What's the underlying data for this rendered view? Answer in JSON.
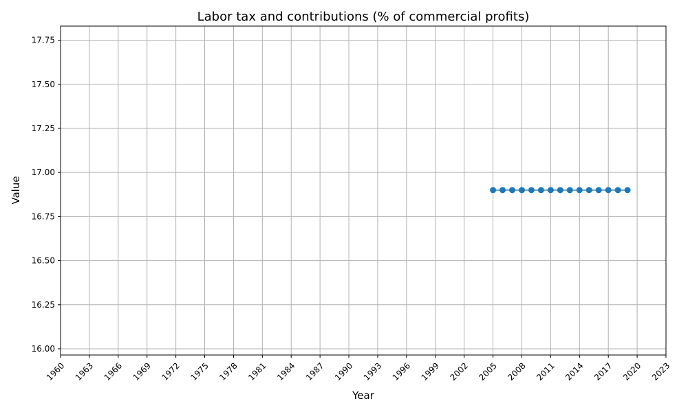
{
  "chart_data": {
    "type": "line",
    "title": "Labor tax and contributions (% of commercial profits)",
    "xlabel": "Year",
    "ylabel": "Value",
    "xlim": [
      1960,
      2023
    ],
    "ylim": [
      15.965,
      17.83
    ],
    "xticks": [
      1960,
      1963,
      1966,
      1969,
      1972,
      1975,
      1978,
      1981,
      1984,
      1987,
      1990,
      1993,
      1996,
      1999,
      2002,
      2005,
      2008,
      2011,
      2014,
      2017,
      2020,
      2023
    ],
    "yticks": [
      16.0,
      16.25,
      16.5,
      16.75,
      17.0,
      17.25,
      17.5,
      17.75
    ],
    "grid": true,
    "series": [
      {
        "color": "#1f77b4",
        "x": [
          2005,
          2006,
          2007,
          2008,
          2009,
          2010,
          2011,
          2012,
          2013,
          2014,
          2015,
          2016,
          2017,
          2018,
          2019
        ],
        "y": [
          16.9,
          16.9,
          16.9,
          16.9,
          16.9,
          16.9,
          16.9,
          16.9,
          16.9,
          16.9,
          16.9,
          16.9,
          16.9,
          16.9,
          16.9
        ]
      }
    ]
  }
}
